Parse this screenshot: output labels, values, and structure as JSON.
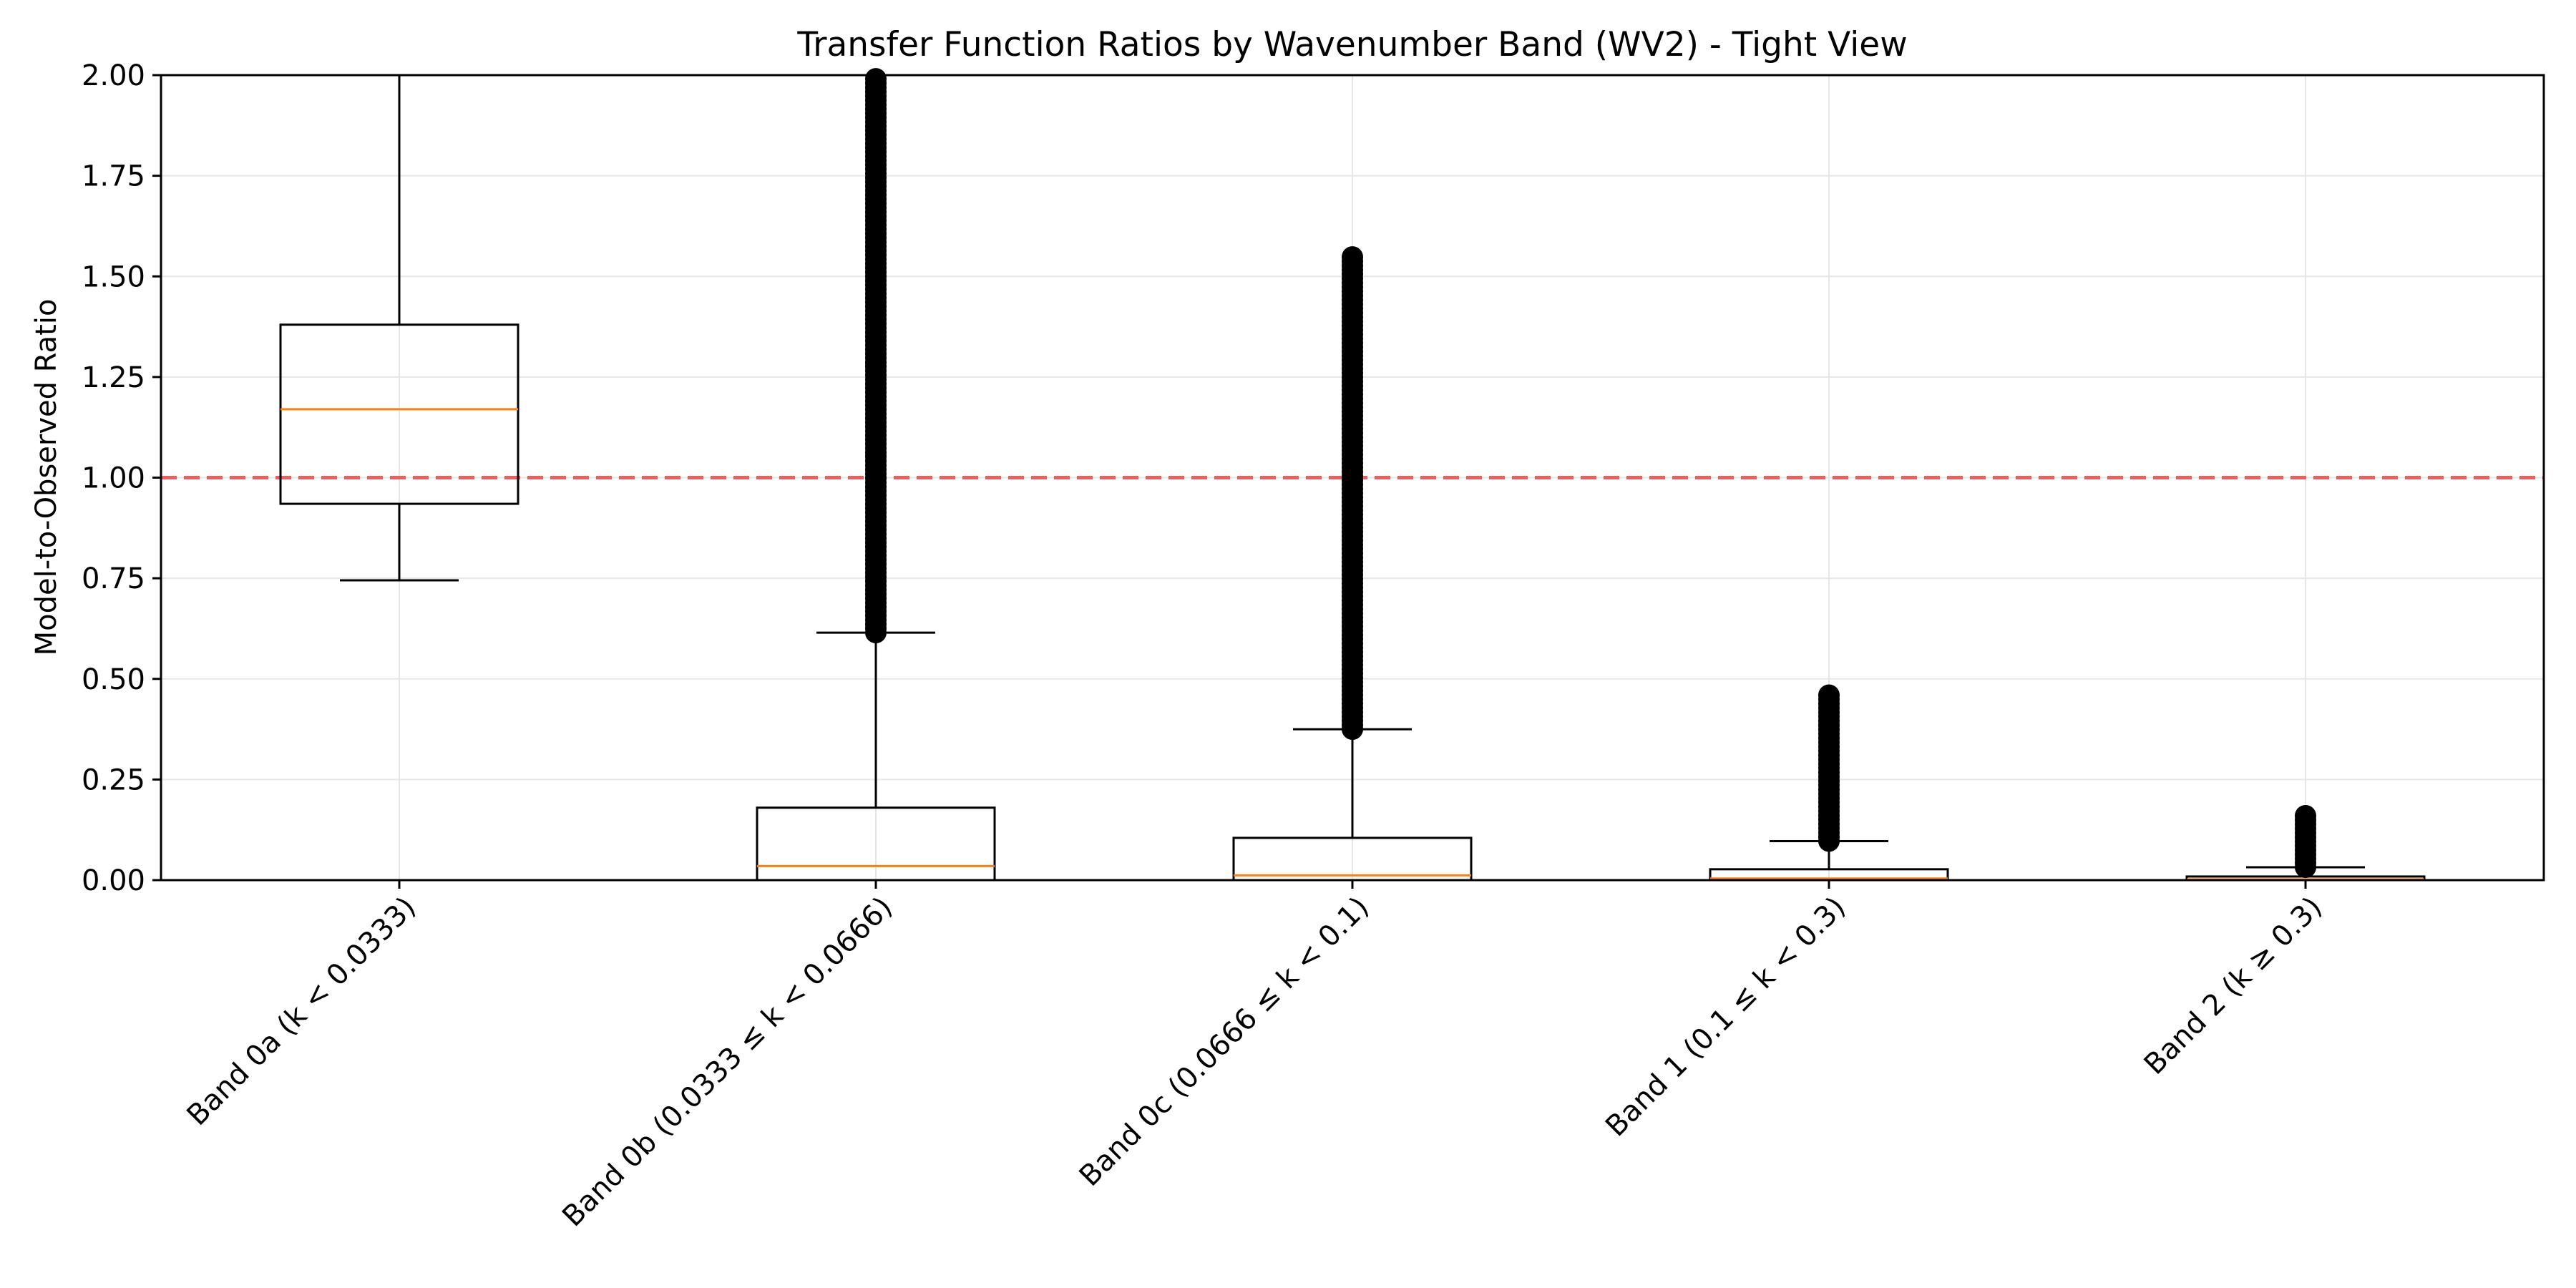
{
  "chart_data": {
    "type": "box",
    "title": "Transfer Function Ratios by Wavenumber Band (WV2) - Tight View",
    "xlabel": "",
    "ylabel": "Model-to-Observed Ratio",
    "ylim": [
      0,
      2.0
    ],
    "yticks": [
      "0.00",
      "0.25",
      "0.50",
      "0.75",
      "1.00",
      "1.25",
      "1.50",
      "1.75",
      "2.00"
    ],
    "grid": true,
    "reference_line": {
      "y": 1.0,
      "style": "dashed",
      "color": "#f25c5c"
    },
    "colors": {
      "box": "#000000",
      "median": "#ff7f0e",
      "outlier": "#000000",
      "grid": "#e6e6e6"
    },
    "categories": [
      "Band 0a (k < 0.0333)",
      "Band 0b (0.0333 ≤ k < 0.0666)",
      "Band 0c (0.0666 ≤ k < 0.1)",
      "Band 1 (0.1 ≤ k < 0.3)",
      "Band 2 (k ≥ 0.3)"
    ],
    "boxes": [
      {
        "whisker_low": 0.745,
        "q1": 0.935,
        "median": 1.17,
        "q3": 1.38,
        "whisker_high": 2.0,
        "outliers_range": null
      },
      {
        "whisker_low": 0.0,
        "q1": 0.0,
        "median": 0.035,
        "q3": 0.18,
        "whisker_high": 0.615,
        "outliers_range": [
          0.615,
          2.0
        ]
      },
      {
        "whisker_low": 0.0,
        "q1": 0.0,
        "median": 0.012,
        "q3": 0.105,
        "whisker_high": 0.375,
        "outliers_range": [
          0.375,
          1.55
        ]
      },
      {
        "whisker_low": 0.0,
        "q1": 0.0,
        "median": 0.004,
        "q3": 0.027,
        "whisker_high": 0.097,
        "outliers_range": [
          0.097,
          0.465
        ]
      },
      {
        "whisker_low": 0.0,
        "q1": 0.0,
        "median": 0.002,
        "q3": 0.009,
        "whisker_high": 0.032,
        "outliers_range": [
          0.032,
          0.16
        ]
      }
    ]
  }
}
